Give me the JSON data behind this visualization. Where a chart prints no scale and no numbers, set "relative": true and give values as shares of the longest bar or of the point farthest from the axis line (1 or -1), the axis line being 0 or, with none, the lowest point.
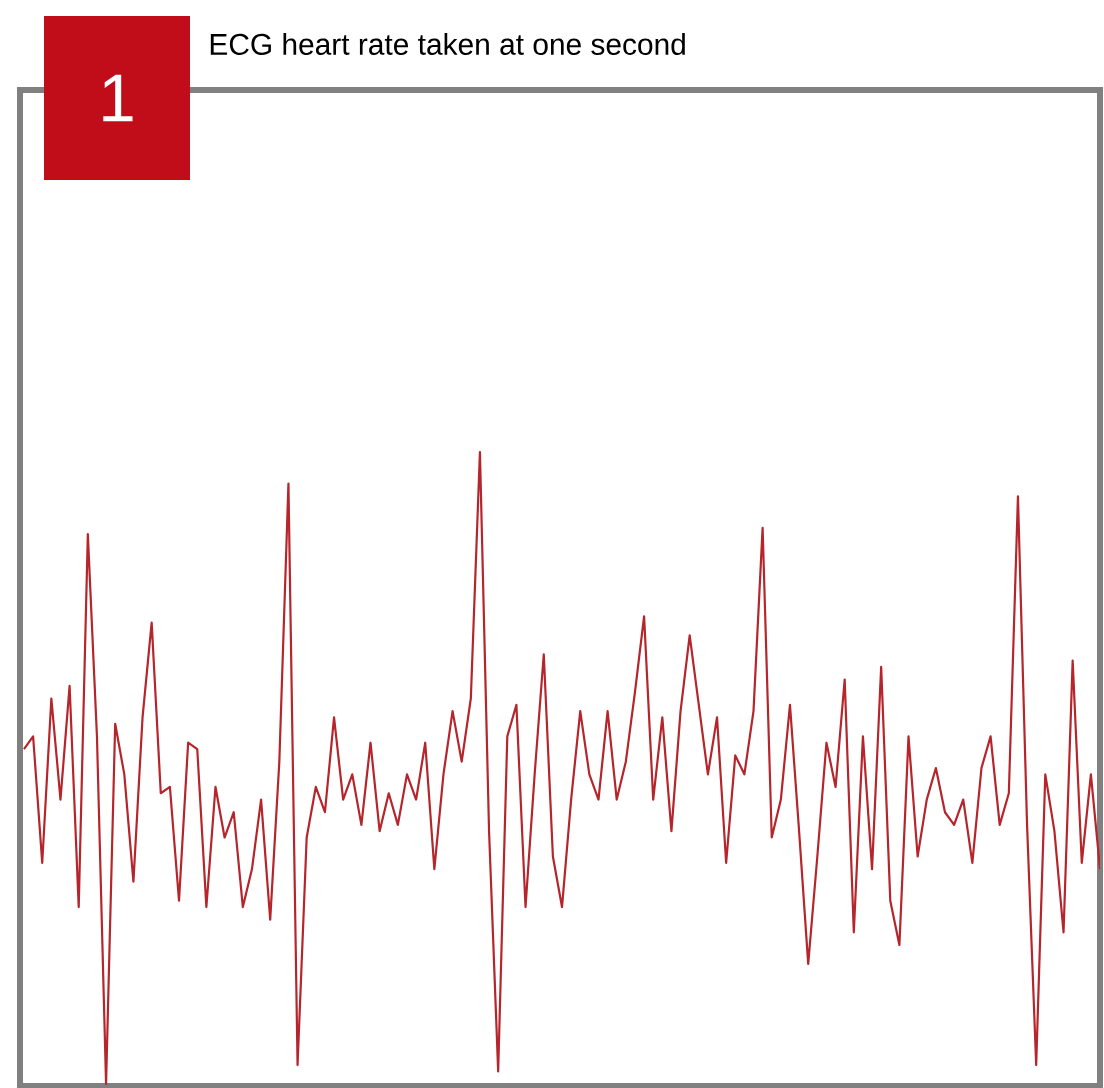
{
  "chart_data": {
    "type": "line",
    "title": "ECG heart rate taken at one second",
    "annotations": [
      "1"
    ],
    "relative": true,
    "marker": "none",
    "line_style": "solid",
    "categories": [
      null,
      null,
      null,
      null,
      null,
      null,
      null,
      null,
      null,
      null,
      null,
      null,
      null,
      null,
      null,
      null,
      null,
      null,
      null,
      null,
      null,
      null,
      null,
      null,
      null,
      null,
      null,
      null,
      null,
      null,
      null,
      null,
      null,
      null,
      null,
      null,
      null,
      null,
      null,
      null,
      null,
      null,
      null,
      null,
      null,
      null,
      null,
      null,
      null,
      null,
      null,
      null,
      null,
      null,
      null,
      null,
      null,
      null,
      null,
      null,
      null,
      null,
      null,
      null,
      null,
      null,
      null,
      null,
      null,
      null,
      null,
      null,
      null,
      null,
      null,
      null,
      null,
      null,
      null,
      null,
      null,
      null,
      null,
      null,
      null,
      null,
      null,
      null,
      null,
      null,
      null,
      null,
      null,
      null,
      null,
      null,
      null,
      null,
      null,
      null,
      null,
      null,
      null,
      null,
      null,
      null,
      null,
      null,
      null,
      null,
      null,
      null,
      null,
      null,
      null,
      null,
      null,
      null,
      null
    ],
    "series": [
      {
        "color": "#b5252b",
        "values": [
          0.53,
          0.55,
          0.35,
          0.61,
          0.45,
          0.63,
          0.28,
          0.87,
          0.55,
          0,
          0.57,
          0.49,
          0.32,
          0.58,
          0.73,
          0.46,
          0.47,
          0.29,
          0.54,
          0.53,
          0.28,
          0.47,
          0.39,
          0.43,
          0.28,
          0.34,
          0.45,
          0.26,
          0.51,
          0.95,
          0.03,
          0.39,
          0.47,
          0.43,
          0.58,
          0.45,
          0.49,
          0.41,
          0.54,
          0.4,
          0.46,
          0.41,
          0.49,
          0.45,
          0.54,
          0.34,
          0.49,
          0.59,
          0.51,
          0.61,
          1,
          0.4,
          0.02,
          0.55,
          0.6,
          0.28,
          0.49,
          0.68,
          0.36,
          0.28,
          0.45,
          0.59,
          0.49,
          0.45,
          0.59,
          0.45,
          0.51,
          0.62,
          0.74,
          0.45,
          0.58,
          0.4,
          0.59,
          0.71,
          0.6,
          0.49,
          0.58,
          0.35,
          0.52,
          0.49,
          0.59,
          0.88,
          0.39,
          0.45,
          0.6,
          0.4,
          0.19,
          0.36,
          0.54,
          0.47,
          0.64,
          0.24,
          0.55,
          0.34,
          0.66,
          0.29,
          0.22,
          0.55,
          0.36,
          0.45,
          0.5,
          0.43,
          0.41,
          0.45,
          0.35,
          0.5,
          0.55,
          0.41,
          0.46,
          0.93,
          0.41,
          0.03,
          0.49,
          0.4,
          0.24,
          0.67,
          0.35,
          0.49,
          0.34
        ]
      }
    ]
  }
}
